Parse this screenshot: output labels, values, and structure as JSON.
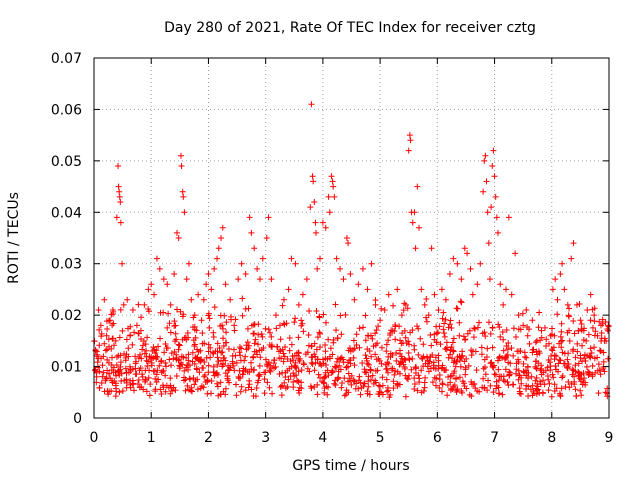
{
  "chart_data": {
    "type": "scatter",
    "title": "Day 280 of 2021, Rate Of TEC Index for receiver cztg",
    "xlabel": "GPS time / hours",
    "ylabel": "ROTI / TECUs",
    "xlim": [
      0,
      9
    ],
    "ylim": [
      0,
      0.07
    ],
    "xticks": [
      0,
      1,
      2,
      3,
      4,
      5,
      6,
      7,
      8,
      9
    ],
    "yticks": [
      0,
      0.01,
      0.02,
      0.03,
      0.04,
      0.05,
      0.06,
      0.07
    ],
    "xtick_labels": [
      "0",
      "1",
      "2",
      "3",
      "4",
      "5",
      "6",
      "7",
      "8",
      "9"
    ],
    "ytick_labels": [
      "0",
      "0.01",
      "0.02",
      "0.03",
      "0.04",
      "0.05",
      "0.06",
      "0.07"
    ],
    "grid": true,
    "marker": "+",
    "marker_color": "#ff0000",
    "series": [
      {
        "name": "ROTI",
        "points": [
          [
            0.05,
            0.012
          ],
          [
            0.08,
            0.021
          ],
          [
            0.12,
            0.018
          ],
          [
            0.18,
            0.023
          ],
          [
            0.22,
            0.016
          ],
          [
            0.28,
            0.019
          ],
          [
            0.33,
            0.021
          ],
          [
            0.38,
            0.015
          ],
          [
            0.4,
            0.039
          ],
          [
            0.42,
            0.049
          ],
          [
            0.43,
            0.045
          ],
          [
            0.44,
            0.044
          ],
          [
            0.45,
            0.043
          ],
          [
            0.46,
            0.042
          ],
          [
            0.47,
            0.038
          ],
          [
            0.49,
            0.03
          ],
          [
            0.52,
            0.022
          ],
          [
            0.58,
            0.023
          ],
          [
            0.63,
            0.016
          ],
          [
            0.68,
            0.021
          ],
          [
            0.75,
            0.018
          ],
          [
            0.82,
            0.017
          ],
          [
            0.88,
            0.022
          ],
          [
            0.95,
            0.025
          ],
          [
            1.0,
            0.026
          ],
          [
            1.05,
            0.024
          ],
          [
            1.1,
            0.031
          ],
          [
            1.15,
            0.029
          ],
          [
            1.22,
            0.027
          ],
          [
            1.28,
            0.026
          ],
          [
            1.34,
            0.022
          ],
          [
            1.4,
            0.028
          ],
          [
            1.45,
            0.036
          ],
          [
            1.48,
            0.035
          ],
          [
            1.52,
            0.051
          ],
          [
            1.53,
            0.049
          ],
          [
            1.55,
            0.044
          ],
          [
            1.56,
            0.043
          ],
          [
            1.58,
            0.04
          ],
          [
            1.62,
            0.027
          ],
          [
            1.66,
            0.03
          ],
          [
            1.7,
            0.023
          ],
          [
            1.76,
            0.02
          ],
          [
            1.82,
            0.024
          ],
          [
            1.88,
            0.019
          ],
          [
            1.92,
            0.023
          ],
          [
            1.96,
            0.026
          ],
          [
            2.0,
            0.028
          ],
          [
            2.05,
            0.025
          ],
          [
            2.1,
            0.029
          ],
          [
            2.15,
            0.031
          ],
          [
            2.18,
            0.033
          ],
          [
            2.22,
            0.035
          ],
          [
            2.25,
            0.037
          ],
          [
            2.3,
            0.026
          ],
          [
            2.38,
            0.023
          ],
          [
            2.45,
            0.018
          ],
          [
            2.52,
            0.027
          ],
          [
            2.58,
            0.03
          ],
          [
            2.65,
            0.028
          ],
          [
            2.72,
            0.039
          ],
          [
            2.75,
            0.036
          ],
          [
            2.8,
            0.033
          ],
          [
            2.85,
            0.029
          ],
          [
            2.9,
            0.027
          ],
          [
            2.95,
            0.031
          ],
          [
            3.02,
            0.035
          ],
          [
            3.05,
            0.039
          ],
          [
            3.1,
            0.027
          ],
          [
            3.18,
            0.02
          ],
          [
            3.25,
            0.018
          ],
          [
            3.32,
            0.023
          ],
          [
            3.4,
            0.025
          ],
          [
            3.45,
            0.031
          ],
          [
            3.52,
            0.03
          ],
          [
            3.58,
            0.022
          ],
          [
            3.65,
            0.024
          ],
          [
            3.72,
            0.027
          ],
          [
            3.78,
            0.041
          ],
          [
            3.8,
            0.061
          ],
          [
            3.82,
            0.047
          ],
          [
            3.83,
            0.046
          ],
          [
            3.85,
            0.042
          ],
          [
            3.87,
            0.038
          ],
          [
            3.88,
            0.036
          ],
          [
            3.9,
            0.029
          ],
          [
            3.95,
            0.031
          ],
          [
            4.0,
            0.038
          ],
          [
            4.05,
            0.037
          ],
          [
            4.1,
            0.043
          ],
          [
            4.12,
            0.04
          ],
          [
            4.15,
            0.047
          ],
          [
            4.17,
            0.046
          ],
          [
            4.18,
            0.045
          ],
          [
            4.2,
            0.043
          ],
          [
            4.24,
            0.031
          ],
          [
            4.3,
            0.029
          ],
          [
            4.36,
            0.027
          ],
          [
            4.42,
            0.035
          ],
          [
            4.44,
            0.034
          ],
          [
            4.48,
            0.028
          ],
          [
            4.55,
            0.023
          ],
          [
            4.62,
            0.026
          ],
          [
            4.7,
            0.029
          ],
          [
            4.78,
            0.025
          ],
          [
            4.85,
            0.03
          ],
          [
            4.92,
            0.022
          ],
          [
            5.0,
            0.019
          ],
          [
            5.08,
            0.021
          ],
          [
            5.15,
            0.024
          ],
          [
            5.22,
            0.017
          ],
          [
            5.3,
            0.025
          ],
          [
            5.38,
            0.02
          ],
          [
            5.45,
            0.022
          ],
          [
            5.5,
            0.052
          ],
          [
            5.52,
            0.055
          ],
          [
            5.53,
            0.054
          ],
          [
            5.55,
            0.04
          ],
          [
            5.57,
            0.038
          ],
          [
            5.6,
            0.04
          ],
          [
            5.62,
            0.033
          ],
          [
            5.65,
            0.045
          ],
          [
            5.68,
            0.037
          ],
          [
            5.72,
            0.025
          ],
          [
            5.78,
            0.022
          ],
          [
            5.85,
            0.02
          ],
          [
            5.9,
            0.033
          ],
          [
            5.95,
            0.024
          ],
          [
            6.02,
            0.021
          ],
          [
            6.08,
            0.025
          ],
          [
            6.15,
            0.023
          ],
          [
            6.22,
            0.028
          ],
          [
            6.28,
            0.031
          ],
          [
            6.35,
            0.03
          ],
          [
            6.42,
            0.027
          ],
          [
            6.48,
            0.033
          ],
          [
            6.52,
            0.032
          ],
          [
            6.58,
            0.029
          ],
          [
            6.62,
            0.024
          ],
          [
            6.7,
            0.026
          ],
          [
            6.75,
            0.03
          ],
          [
            6.8,
            0.044
          ],
          [
            6.82,
            0.05
          ],
          [
            6.84,
            0.051
          ],
          [
            6.86,
            0.046
          ],
          [
            6.88,
            0.04
          ],
          [
            6.9,
            0.034
          ],
          [
            6.92,
            0.027
          ],
          [
            6.94,
            0.041
          ],
          [
            6.96,
            0.049
          ],
          [
            6.98,
            0.052
          ],
          [
            7.0,
            0.047
          ],
          [
            7.02,
            0.043
          ],
          [
            7.04,
            0.039
          ],
          [
            7.06,
            0.036
          ],
          [
            7.1,
            0.026
          ],
          [
            7.15,
            0.022
          ],
          [
            7.2,
            0.025
          ],
          [
            7.25,
            0.039
          ],
          [
            7.3,
            0.024
          ],
          [
            7.36,
            0.032
          ],
          [
            7.42,
            0.02
          ],
          [
            7.5,
            0.018
          ],
          [
            7.58,
            0.016
          ],
          [
            7.66,
            0.019
          ],
          [
            7.74,
            0.015
          ],
          [
            7.82,
            0.017
          ],
          [
            7.9,
            0.014
          ],
          [
            7.98,
            0.016
          ],
          [
            8.02,
            0.025
          ],
          [
            8.06,
            0.027
          ],
          [
            8.1,
            0.023
          ],
          [
            8.15,
            0.028
          ],
          [
            8.18,
            0.03
          ],
          [
            8.22,
            0.025
          ],
          [
            8.28,
            0.022
          ],
          [
            8.34,
            0.031
          ],
          [
            8.38,
            0.034
          ],
          [
            8.44,
            0.022
          ],
          [
            8.5,
            0.019
          ],
          [
            8.56,
            0.017
          ],
          [
            8.62,
            0.021
          ],
          [
            8.68,
            0.024
          ],
          [
            8.74,
            0.02
          ],
          [
            8.8,
            0.016
          ],
          [
            8.86,
            0.018
          ],
          [
            8.92,
            0.015
          ]
        ]
      }
    ]
  }
}
